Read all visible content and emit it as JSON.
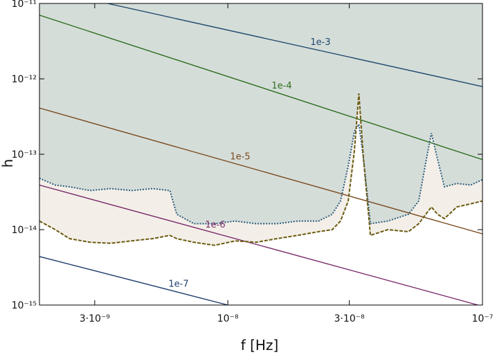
{
  "chart_data": {
    "type": "line",
    "xlabel": "f [Hz]",
    "ylabel": "h",
    "log_x": true,
    "log_y": true,
    "xlim": [
      1.82e-09,
      1e-07
    ],
    "ylim": [
      1e-15,
      1e-11
    ],
    "xticks": [
      {
        "value": 3e-09,
        "label": "3·10⁻⁹"
      },
      {
        "value": 1e-08,
        "label": "10⁻⁸"
      },
      {
        "value": 3e-08,
        "label": "3·10⁻⁸"
      },
      {
        "value": 1e-07,
        "label": "10⁻⁷"
      }
    ],
    "yticks": [
      {
        "value": 1e-15,
        "label": "10⁻¹⁵"
      },
      {
        "value": 1e-14,
        "label": "10⁻¹⁴"
      },
      {
        "value": 1e-13,
        "label": "10⁻¹³"
      },
      {
        "value": 1e-12,
        "label": "10⁻¹²"
      },
      {
        "value": 1e-11,
        "label": "10⁻¹¹"
      }
    ],
    "lines": [
      {
        "name": "1e-3",
        "color": "#1f4a6e",
        "x": [
          3.37e-09,
          1e-07
        ],
        "values": [
          1e-11,
          7.9e-13
        ]
      },
      {
        "name": "1e-4",
        "color": "#2e6e1e",
        "x": [
          1.82e-09,
          1e-07
        ],
        "values": [
          7e-12,
          8.5e-14
        ]
      },
      {
        "name": "1e-5",
        "color": "#7a4a1e",
        "x": [
          1.82e-09,
          1e-07
        ],
        "values": [
          4.1e-13,
          8.8e-15
        ]
      },
      {
        "name": "1e-6",
        "color": "#7a2a6a",
        "x": [
          1.82e-09,
          9.6e-08
        ],
        "values": [
          3.9e-14,
          1e-15
        ]
      },
      {
        "name": "1e-7",
        "color": "#1f3f6e",
        "x": [
          1.82e-09,
          1e-08
        ],
        "values": [
          4.4e-15,
          1e-15
        ]
      }
    ],
    "x": [
      1.82e-09,
      2.1e-09,
      2.39e-09,
      2.88e-09,
      3.47e-09,
      4.19e-09,
      5.06e-09,
      5.92e-09,
      6.3e-09,
      7.36e-09,
      8.88e-09,
      1.07e-08,
      1.29e-08,
      1.56e-08,
      1.88e-08,
      2.27e-08,
      2.57e-08,
      2.77e-08,
      2.97e-08,
      3.14e-08,
      3.27e-08,
      3.41e-08,
      3.63e-08,
      4.25e-08,
      5.12e-08,
      5.62e-08,
      5.99e-08,
      6.3e-08,
      6.66e-08,
      7.09e-08,
      7.93e-08,
      8.99e-08,
      1e-07
    ],
    "curves": [
      {
        "color": "#2a5a7a",
        "style": "dotted",
        "fill": "#d5ddd9",
        "values": [
          4.8e-14,
          3.9e-14,
          3.7e-14,
          3.3e-14,
          3.5e-14,
          3.3e-14,
          3.5e-14,
          3.3e-14,
          1.6e-14,
          1.2e-14,
          1.2e-14,
          1.3e-14,
          1.2e-14,
          1.2e-14,
          1.3e-14,
          1.3e-14,
          1.6e-14,
          2.4e-14,
          7e-14,
          2e-13,
          2.5e-13,
          8.6e-14,
          1.2e-14,
          1.3e-14,
          1.6e-14,
          2.4e-14,
          7.8e-14,
          1.9e-13,
          8.6e-14,
          3.7e-14,
          4.1e-14,
          3.9e-14,
          4.6e-14
        ]
      },
      {
        "color": "#6b5a10",
        "style": "dashed",
        "fill": "#f3efe8",
        "values": [
          1.3e-14,
          1e-14,
          7.6e-15,
          6.8e-15,
          6.6e-15,
          7.1e-15,
          7.6e-15,
          8.4e-15,
          7.6e-15,
          6.8e-15,
          6.2e-15,
          7.1e-15,
          6.8e-15,
          7.6e-15,
          8.4e-15,
          9.4e-15,
          1e-14,
          1.3e-14,
          2.4e-14,
          1.1e-13,
          6.4e-13,
          8.6e-14,
          8.4e-15,
          1e-14,
          9.4e-15,
          1.2e-14,
          1.6e-14,
          2e-14,
          1.6e-14,
          1.4e-14,
          2e-14,
          2.2e-14,
          2.4e-14
        ]
      }
    ]
  }
}
